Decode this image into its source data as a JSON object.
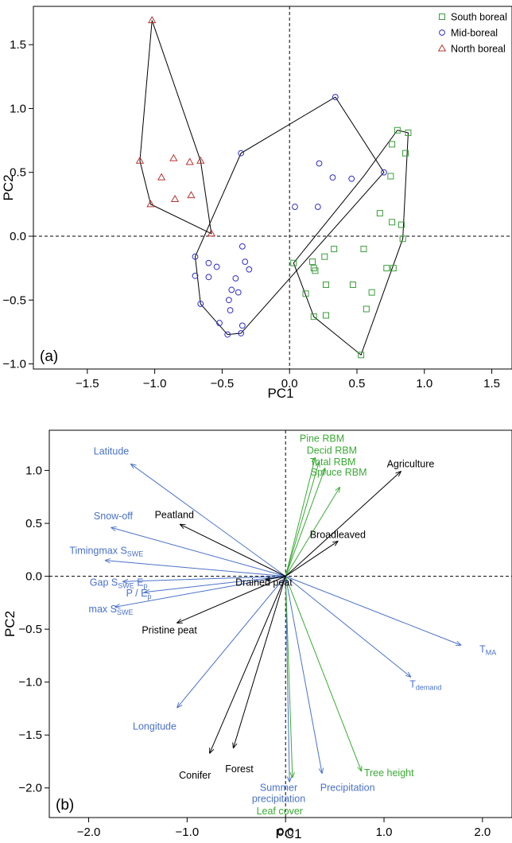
{
  "colors": {
    "south": "#3a9d3a",
    "mid": "#2e2ec8",
    "north": "#b5352f",
    "blue_vec": "#4a72c8",
    "green_vec": "#3aaa35",
    "black_vec": "#000000"
  },
  "chart_data": [
    {
      "type": "scatter",
      "panel_label": "(a)",
      "xlabel": "PC1",
      "ylabel": "PC2",
      "xlim": [
        -1.9,
        1.65
      ],
      "ylim": [
        -1.04,
        1.8
      ],
      "x_ticks": [
        -1.5,
        -1.0,
        -0.5,
        0.0,
        0.5,
        1.0,
        1.5
      ],
      "x_tick_labels": [
        "−1.5",
        "−1.0",
        "−0.5",
        "0.0",
        "0.5",
        "1.0",
        "1.5"
      ],
      "y_ticks": [
        -1.0,
        -0.5,
        0.0,
        0.5,
        1.0,
        1.5
      ],
      "y_tick_labels": [
        "−1.0",
        "−0.5",
        "0.0",
        "0.5",
        "1.0",
        "1.5"
      ],
      "reference_lines": {
        "x": 0,
        "y": 0
      },
      "legend_position": "top-right",
      "series": [
        {
          "name": "South boreal",
          "marker": "square",
          "color_key": "south",
          "points": [
            [
              0.8,
              0.83
            ],
            [
              0.88,
              0.81
            ],
            [
              0.86,
              0.65
            ],
            [
              0.76,
              0.72
            ],
            [
              0.75,
              0.47
            ],
            [
              0.67,
              0.18
            ],
            [
              0.76,
              0.11
            ],
            [
              0.83,
              0.09
            ],
            [
              0.84,
              -0.02
            ],
            [
              0.55,
              -0.1
            ],
            [
              0.33,
              -0.1
            ],
            [
              0.26,
              -0.16
            ],
            [
              0.17,
              -0.2
            ],
            [
              0.03,
              -0.21
            ],
            [
              0.18,
              -0.25
            ],
            [
              0.19,
              -0.27
            ],
            [
              0.72,
              -0.25
            ],
            [
              0.77,
              -0.25
            ],
            [
              0.61,
              -0.44
            ],
            [
              0.47,
              -0.38
            ],
            [
              0.27,
              -0.38
            ],
            [
              0.12,
              -0.45
            ],
            [
              0.27,
              -0.62
            ],
            [
              0.18,
              -0.63
            ],
            [
              0.57,
              -0.57
            ],
            [
              0.53,
              -0.93
            ]
          ],
          "hull": [
            [
              0.8,
              0.83
            ],
            [
              0.88,
              0.81
            ],
            [
              0.84,
              -0.02
            ],
            [
              0.53,
              -0.93
            ],
            [
              0.18,
              -0.63
            ],
            [
              0.03,
              -0.21
            ],
            [
              0.55,
              0.47
            ],
            [
              0.8,
              0.83
            ]
          ]
        },
        {
          "name": "Mid-boreal",
          "marker": "circle",
          "color_key": "mid",
          "points": [
            [
              0.34,
              1.09
            ],
            [
              0.7,
              0.5
            ],
            [
              0.46,
              0.45
            ],
            [
              0.22,
              0.57
            ],
            [
              0.32,
              0.46
            ],
            [
              0.21,
              0.23
            ],
            [
              0.04,
              0.23
            ],
            [
              -0.36,
              0.65
            ],
            [
              -0.7,
              -0.16
            ],
            [
              -0.35,
              -0.08
            ],
            [
              -0.6,
              -0.21
            ],
            [
              -0.33,
              -0.2
            ],
            [
              -0.3,
              -0.26
            ],
            [
              -0.54,
              -0.24
            ],
            [
              -0.7,
              -0.31
            ],
            [
              -0.6,
              -0.32
            ],
            [
              -0.4,
              -0.33
            ],
            [
              -0.43,
              -0.42
            ],
            [
              -0.38,
              -0.44
            ],
            [
              -0.45,
              -0.5
            ],
            [
              -0.66,
              -0.53
            ],
            [
              -0.44,
              -0.58
            ],
            [
              -0.52,
              -0.68
            ],
            [
              -0.35,
              -0.7
            ],
            [
              -0.46,
              -0.77
            ],
            [
              -0.36,
              -0.76
            ]
          ],
          "hull": [
            [
              0.34,
              1.09
            ],
            [
              0.7,
              0.5
            ],
            [
              -0.36,
              -0.76
            ],
            [
              -0.46,
              -0.77
            ],
            [
              -0.66,
              -0.53
            ],
            [
              -0.7,
              -0.16
            ],
            [
              -0.36,
              0.65
            ],
            [
              0.34,
              1.09
            ]
          ]
        },
        {
          "name": "North boreal",
          "marker": "triangle",
          "color_key": "north",
          "points": [
            [
              -1.02,
              1.69
            ],
            [
              -1.11,
              0.59
            ],
            [
              -0.86,
              0.61
            ],
            [
              -0.95,
              0.46
            ],
            [
              -0.74,
              0.58
            ],
            [
              -0.66,
              0.59
            ],
            [
              -0.73,
              0.32
            ],
            [
              -0.85,
              0.29
            ],
            [
              -1.03,
              0.25
            ],
            [
              -0.58,
              0.02
            ]
          ],
          "hull": [
            [
              -1.02,
              1.69
            ],
            [
              -0.66,
              0.59
            ],
            [
              -0.58,
              0.02
            ],
            [
              -1.03,
              0.25
            ],
            [
              -1.11,
              0.59
            ],
            [
              -1.02,
              1.69
            ]
          ]
        }
      ]
    },
    {
      "type": "biplot",
      "panel_label": "(b)",
      "xlabel": "PC1",
      "ylabel": "PC2",
      "xlim": [
        -2.4,
        2.3
      ],
      "ylim": [
        -2.28,
        1.38
      ],
      "x_ticks": [
        -2.0,
        -1.0,
        0.0,
        1.0,
        2.0
      ],
      "x_tick_labels": [
        "−2.0",
        "−1.0",
        "0.0",
        "1.0",
        "2.0"
      ],
      "y_ticks": [
        -2.0,
        -1.5,
        -1.0,
        -0.5,
        0.0,
        0.5,
        1.0
      ],
      "y_tick_labels": [
        "−2.0",
        "−1.5",
        "−1.0",
        "−0.5",
        "0.0",
        "0.5",
        "1.0"
      ],
      "reference_lines": {
        "x": 0,
        "y": 0
      },
      "vectors": [
        {
          "label": "Latitude",
          "sub": "",
          "tail": "",
          "color_key": "blue_vec",
          "end": [
            -1.57,
            1.06
          ],
          "text_at": [
            -1.77,
            1.18
          ],
          "anchor": "middle"
        },
        {
          "label": "Snow-off",
          "sub": "",
          "tail": "",
          "color_key": "blue_vec",
          "end": [
            -1.77,
            0.46
          ],
          "text_at": [
            -1.75,
            0.57
          ],
          "anchor": "middle"
        },
        {
          "label": "Timingmax S",
          "sub": "SWE",
          "tail": "",
          "color_key": "blue_vec",
          "end": [
            -1.83,
            0.15
          ],
          "text_at": [
            -1.82,
            0.24
          ],
          "anchor": "middle"
        },
        {
          "label": "Gap S",
          "sub": "SWE",
          "tail": " E",
          "tail_sub": "p",
          "color_key": "blue_vec",
          "end": [
            -1.65,
            -0.05
          ],
          "text_at": [
            -1.99,
            -0.06
          ],
          "anchor": "start"
        },
        {
          "label": "P / E",
          "sub": "p",
          "tail": "",
          "color_key": "blue_vec",
          "end": [
            -1.43,
            -0.15
          ],
          "text_at": [
            -1.62,
            -0.16
          ],
          "anchor": "start"
        },
        {
          "label": "max S",
          "sub": "SWE",
          "tail": "",
          "color_key": "blue_vec",
          "end": [
            -1.73,
            -0.29
          ],
          "text_at": [
            -2.0,
            -0.31
          ],
          "anchor": "start"
        },
        {
          "label": "Longitude",
          "sub": "",
          "tail": "",
          "color_key": "blue_vec",
          "end": [
            -1.1,
            -1.24
          ],
          "text_at": [
            -1.33,
            -1.42
          ],
          "anchor": "middle"
        },
        {
          "label": "Summer precipitation",
          "lines": [
            "Summer",
            "precipitation"
          ],
          "sub": "",
          "tail": "",
          "color_key": "blue_vec",
          "end": [
            0.04,
            -1.94
          ],
          "text_at": [
            -0.07,
            -2.03
          ],
          "anchor": "middle"
        },
        {
          "label": "Precipitation",
          "sub": "",
          "tail": "",
          "color_key": "blue_vec",
          "end": [
            0.37,
            -1.86
          ],
          "text_at": [
            0.63,
            -2.0
          ],
          "anchor": "middle"
        },
        {
          "label": "T",
          "sub": "MA",
          "tail": "",
          "color_key": "blue_vec",
          "end": [
            1.78,
            -0.65
          ],
          "text_at": [
            1.97,
            -0.69
          ],
          "anchor": "start"
        },
        {
          "label": "T",
          "sub": "demand",
          "tail": "",
          "color_key": "blue_vec",
          "end": [
            1.27,
            -0.95
          ],
          "text_at": [
            1.26,
            -1.02
          ],
          "anchor": "start"
        },
        {
          "label": "Pine RBM",
          "sub": "",
          "tail": "",
          "color_key": "green_vec",
          "end": [
            0.3,
            1.12
          ],
          "text_at": [
            0.37,
            1.3
          ],
          "anchor": "middle"
        },
        {
          "label": "Decid RBM",
          "sub": "",
          "tail": "",
          "color_key": "green_vec",
          "end": [
            0.34,
            1.08
          ],
          "text_at": [
            0.47,
            1.19
          ],
          "anchor": "middle"
        },
        {
          "label": "Total RBM",
          "sub": "",
          "tail": "",
          "color_key": "green_vec",
          "end": [
            0.4,
            1.02
          ],
          "text_at": [
            0.48,
            1.08
          ],
          "anchor": "middle"
        },
        {
          "label": "Spruce RBM",
          "sub": "",
          "tail": "",
          "color_key": "green_vec",
          "end": [
            0.55,
            0.84
          ],
          "text_at": [
            0.54,
            0.98
          ],
          "anchor": "middle"
        },
        {
          "label": "Tree height",
          "sub": "",
          "tail": "",
          "color_key": "green_vec",
          "end": [
            0.77,
            -1.84
          ],
          "text_at": [
            1.05,
            -1.86
          ],
          "anchor": "middle"
        },
        {
          "label": "Leaf cover",
          "sub": "",
          "tail": "",
          "color_key": "green_vec",
          "end": [
            0.07,
            -1.9
          ],
          "text_at": [
            -0.06,
            -2.22
          ],
          "anchor": "middle"
        },
        {
          "label": "Agriculture",
          "sub": "",
          "tail": "",
          "color_key": "black_vec",
          "end": [
            1.17,
            0.99
          ],
          "text_at": [
            1.27,
            1.06
          ],
          "anchor": "middle"
        },
        {
          "label": "Broadleaved",
          "sub": "",
          "tail": "",
          "color_key": "black_vec",
          "end": [
            0.53,
            0.33
          ],
          "text_at": [
            0.53,
            0.39
          ],
          "anchor": "middle"
        },
        {
          "label": "Peatland",
          "sub": "",
          "tail": "",
          "color_key": "black_vec",
          "end": [
            -1.07,
            0.49
          ],
          "text_at": [
            -1.13,
            0.58
          ],
          "anchor": "middle"
        },
        {
          "label": "Drained peat",
          "sub": "",
          "tail": "",
          "color_key": "black_vec",
          "end": [
            -0.2,
            -0.03
          ],
          "text_at": [
            -0.22,
            -0.06
          ],
          "anchor": "middle"
        },
        {
          "label": "Pristine peat",
          "sub": "",
          "tail": "",
          "color_key": "black_vec",
          "end": [
            -1.1,
            -0.44
          ],
          "text_at": [
            -1.18,
            -0.51
          ],
          "anchor": "middle"
        },
        {
          "label": "Conifer",
          "sub": "",
          "tail": "",
          "color_key": "black_vec",
          "end": [
            -0.77,
            -1.67
          ],
          "text_at": [
            -0.92,
            -1.88
          ],
          "anchor": "middle"
        },
        {
          "label": "Forest",
          "sub": "",
          "tail": "",
          "color_key": "black_vec",
          "end": [
            -0.53,
            -1.62
          ],
          "text_at": [
            -0.47,
            -1.82
          ],
          "anchor": "middle"
        }
      ]
    }
  ]
}
